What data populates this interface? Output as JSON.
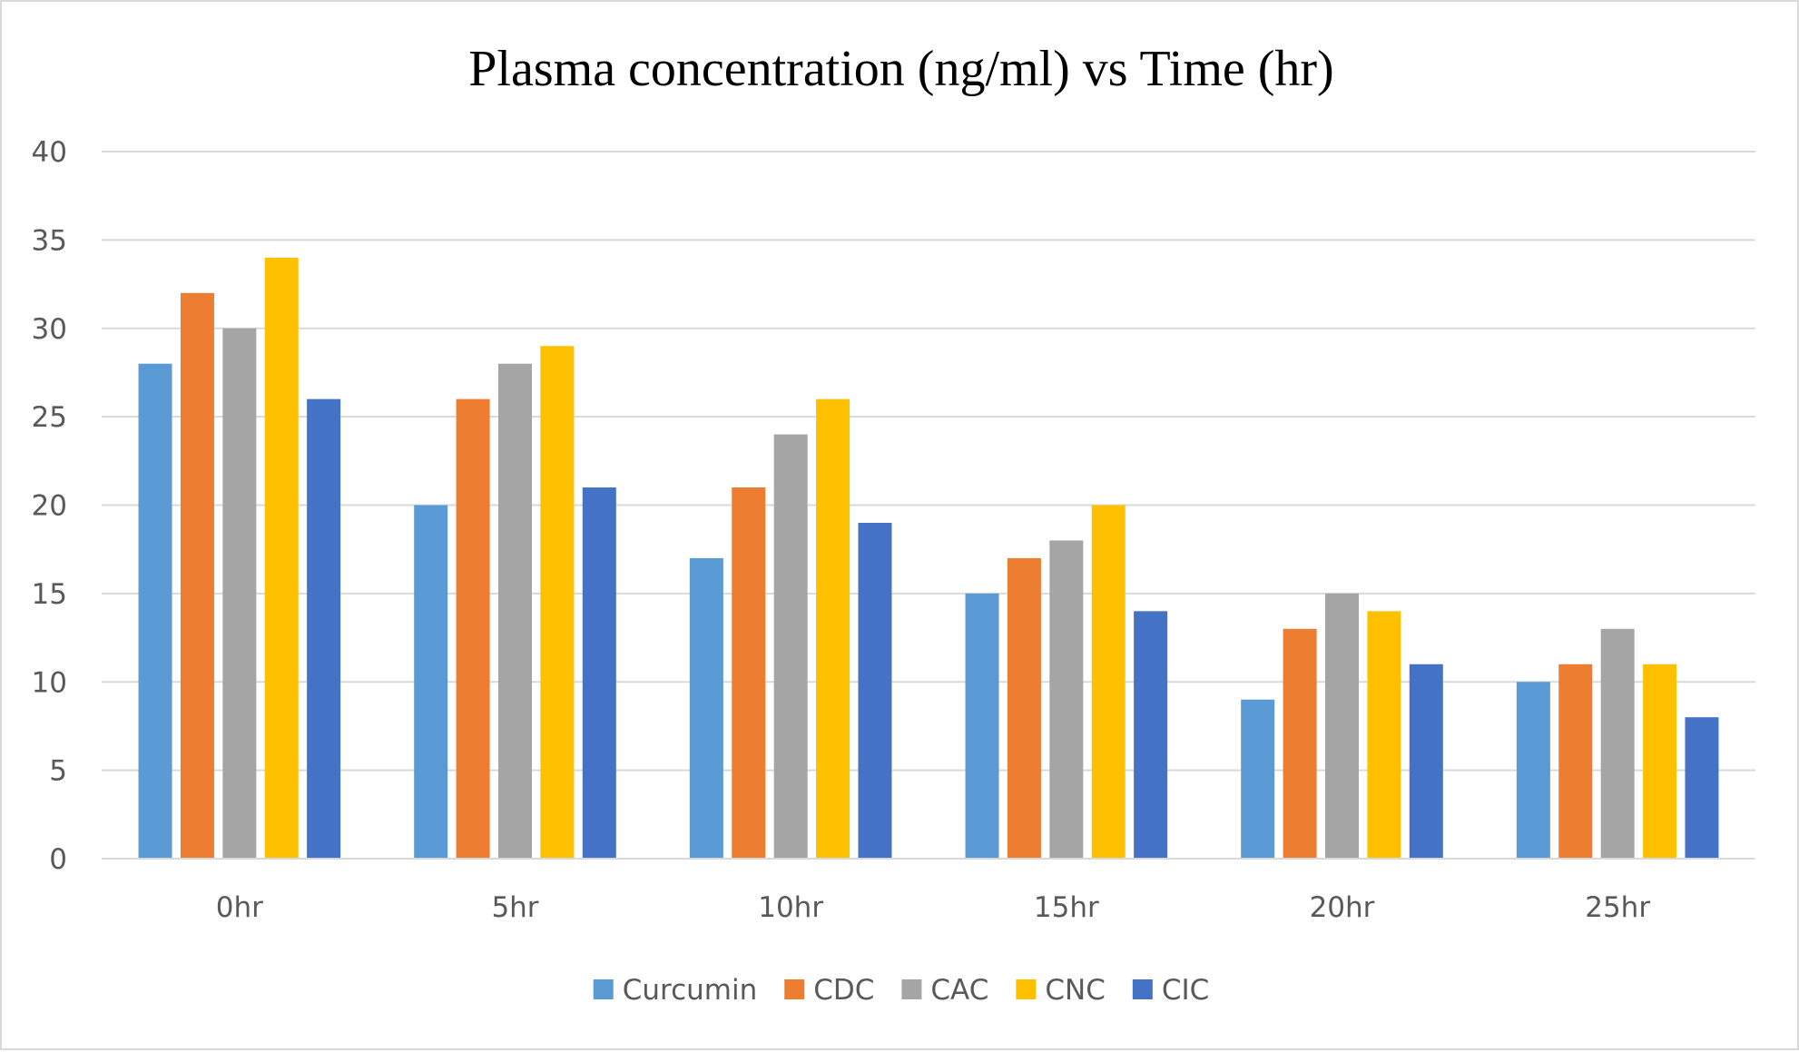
{
  "chart_data": {
    "type": "bar",
    "title": "Plasma concentration (ng/ml) vs Time (hr)",
    "xlabel": "",
    "ylabel": "",
    "categories": [
      "0hr",
      "5hr",
      "10hr",
      "15hr",
      "20hr",
      "25hr"
    ],
    "ylim": [
      0,
      40
    ],
    "yticks": [
      0,
      5,
      10,
      15,
      20,
      25,
      30,
      35,
      40
    ],
    "grid": true,
    "legend_position": "bottom",
    "series": [
      {
        "name": "Curcumin",
        "color": "#5b9bd5",
        "values": [
          28,
          20,
          17,
          15,
          9,
          10
        ]
      },
      {
        "name": "CDC",
        "color": "#ed7d31",
        "values": [
          32,
          26,
          21,
          17,
          13,
          11
        ]
      },
      {
        "name": "CAC",
        "color": "#a5a5a5",
        "values": [
          30,
          28,
          24,
          18,
          15,
          13
        ]
      },
      {
        "name": "CNC",
        "color": "#ffc000",
        "values": [
          34,
          29,
          26,
          20,
          14,
          11
        ]
      },
      {
        "name": "CIC",
        "color": "#4472c4",
        "values": [
          26,
          21,
          19,
          14,
          11,
          8
        ]
      }
    ]
  }
}
